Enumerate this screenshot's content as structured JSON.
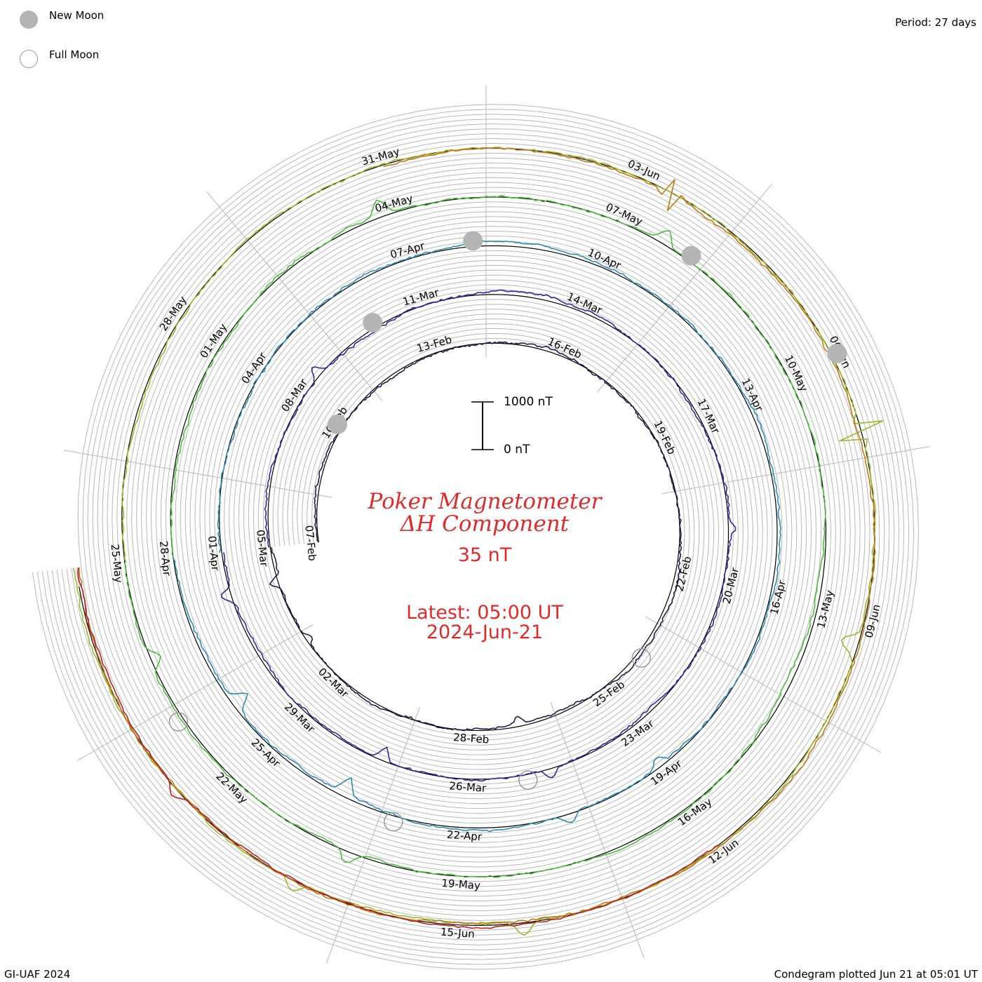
{
  "header": {
    "period": "Period: 27 days",
    "legend": [
      {
        "label": "New Moon",
        "icon": "new-moon-icon"
      },
      {
        "label": "Full Moon",
        "icon": "full-moon-icon"
      }
    ]
  },
  "center": {
    "title_line1": "Poker Magnetometer",
    "title_line2": "ΔH Component",
    "value": "35 nT",
    "latest_line1": "Latest: 05:00 UT",
    "latest_line2": "2024-Jun-21",
    "scale_top": "1000 nT",
    "scale_bottom": "0 nT"
  },
  "footer": {
    "left": "GI-UAF 2024",
    "right": "Condegram plotted Jun 21 at 05:01 UT"
  },
  "colors": {
    "text_red": "#e02a2a",
    "grid": "#b8b8b8",
    "moon_new": "#b4b4b4"
  },
  "chart_data": {
    "type": "line",
    "period_days": 27,
    "start_date": "2024-Feb-07",
    "end_date": "2024-Jun-21",
    "y_unit": "nT",
    "scale_bar_nT": [
      0,
      1000
    ],
    "date_labels": [
      "07-Feb",
      "10-Feb",
      "13-Feb",
      "16-Feb",
      "19-Feb",
      "22-Feb",
      "25-Feb",
      "28-Feb",
      "02-Mar",
      "05-Mar",
      "08-Mar",
      "11-Mar",
      "14-Mar",
      "17-Mar",
      "20-Mar",
      "23-Mar",
      "26-Mar",
      "29-Mar",
      "01-Apr",
      "04-Apr",
      "07-Apr",
      "10-Apr",
      "13-Apr",
      "16-Apr",
      "19-Apr",
      "22-Apr",
      "25-Apr",
      "28-Apr",
      "01-May",
      "04-May",
      "07-May",
      "10-May",
      "13-May",
      "16-May",
      "19-May",
      "22-May",
      "25-May",
      "28-May",
      "31-May",
      "03-Jun",
      "06-Jun",
      "09-Jun",
      "12-Jun",
      "15-Jun"
    ],
    "series": [
      {
        "color": "#1e1e4a",
        "days": [
          "2024-Feb-07",
          "2024-Mar-05"
        ],
        "events": [
          {
            "day": 20,
            "nT": -150
          },
          {
            "day": 25,
            "nT": -120
          },
          {
            "day": 26.3,
            "nT": 250
          }
        ]
      },
      {
        "color": "#2a2aa0",
        "days": [
          "2024-Mar-05",
          "2024-Apr-01"
        ],
        "events": [
          {
            "day": 3.6,
            "nT": 230
          },
          {
            "day": 14,
            "nT": 120
          },
          {
            "day": 19.6,
            "nT": 210
          },
          {
            "day": 22.5,
            "nT": -300
          },
          {
            "day": 26.3,
            "nT": 260
          }
        ]
      },
      {
        "color": "#2a8cb4",
        "days": [
          "2024-Apr-01",
          "2024-Apr-28"
        ],
        "events": [
          {
            "day": 18,
            "nT": -160
          },
          {
            "day": 19.5,
            "nT": 190
          },
          {
            "day": 22.8,
            "nT": -350
          },
          {
            "day": 24.8,
            "nT": -320
          }
        ]
      },
      {
        "color": "#4cbb3c",
        "days": [
          "2024-Apr-28",
          "2024-May-25"
        ],
        "events": [
          {
            "day": 5.8,
            "nT": 330
          },
          {
            "day": 9.6,
            "nT": 260
          },
          {
            "day": 22.4,
            "nT": 280
          },
          {
            "day": 25.8,
            "nT": -240
          }
        ]
      },
      {
        "color": "#9ab828",
        "days": [
          "2024-May-25",
          "2024-Jun-21"
        ],
        "events": [
          {
            "day": 12.9,
            "nT": 650
          },
          {
            "day": 15.3,
            "nT": -350
          },
          {
            "day": 20.3,
            "nT": 300
          },
          {
            "day": 22.8,
            "nT": 220
          }
        ]
      },
      {
        "color": "#c07818",
        "days": [
          "2024-May-31",
          "2024-Jun-21"
        ],
        "events": [
          {
            "day": 3.4,
            "nT": 420
          }
        ]
      },
      {
        "color": "#c01c1c",
        "days": [
          "2024-Jun-12",
          "2024-Jun-21"
        ],
        "events": [
          {
            "day": 6.4,
            "nT": 180
          }
        ]
      }
    ],
    "moon_phases": [
      {
        "phase": "new",
        "date": "2024-Feb-10"
      },
      {
        "phase": "full",
        "date": "2024-Feb-24"
      },
      {
        "phase": "new",
        "date": "2024-Mar-10"
      },
      {
        "phase": "full",
        "date": "2024-Mar-25"
      },
      {
        "phase": "new",
        "date": "2024-Apr-08"
      },
      {
        "phase": "full",
        "date": "2024-Apr-23"
      },
      {
        "phase": "new",
        "date": "2024-May-08"
      },
      {
        "phase": "full",
        "date": "2024-May-23"
      },
      {
        "phase": "new",
        "date": "2024-Jun-06"
      }
    ]
  }
}
